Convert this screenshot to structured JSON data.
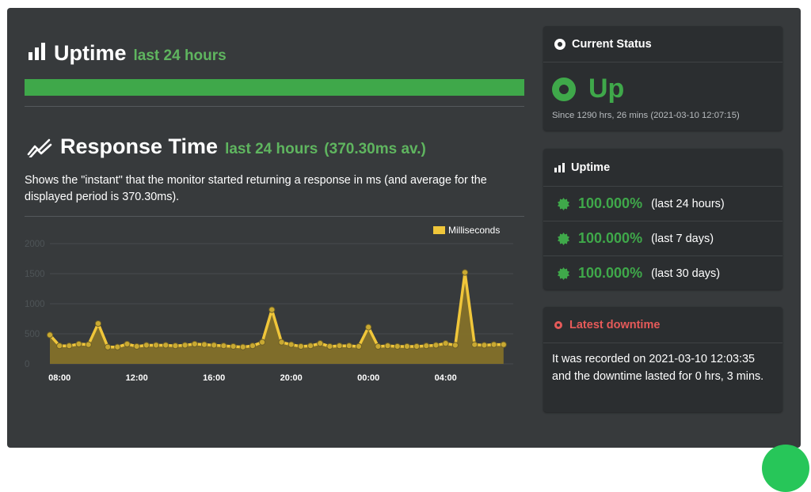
{
  "uptime_section": {
    "title": "Uptime",
    "subtitle": "last 24 hours",
    "bar_percent": 100
  },
  "response_section": {
    "title": "Response Time",
    "subtitle": "last 24 hours",
    "average": "(370.30ms av.)",
    "description": "Shows the \"instant\" that the monitor started returning a response in ms (and average for the displayed period is 370.30ms)."
  },
  "chart_data": {
    "type": "area",
    "legend": {
      "label": "Milliseconds",
      "position": "top-right",
      "color": "#f0c63a"
    },
    "x_tick_labels": [
      "08:00",
      "12:00",
      "16:00",
      "20:00",
      "00:00",
      "04:00"
    ],
    "x_tick_hours": [
      8,
      12,
      16,
      20,
      24,
      28
    ],
    "y_tick_labels": [
      "0",
      "500",
      "1000",
      "1500",
      "2000"
    ],
    "ylim": [
      0,
      2000
    ],
    "xlim_hours": [
      7.5,
      31.5
    ],
    "grid": true,
    "series": [
      {
        "name": "Milliseconds",
        "color": "#f0c63a",
        "x_hours": [
          7.5,
          8,
          8.5,
          9,
          9.5,
          10,
          10.5,
          11,
          11.5,
          12,
          12.5,
          13,
          13.5,
          14,
          14.5,
          15,
          15.5,
          16,
          16.5,
          17,
          17.5,
          18,
          18.5,
          19,
          19.5,
          20,
          20.5,
          21,
          21.5,
          22,
          22.5,
          23,
          23.5,
          24,
          24.5,
          25,
          25.5,
          26,
          26.5,
          27,
          27.5,
          28,
          28.5,
          29,
          29.5,
          30,
          30.5,
          31
        ],
        "values": [
          480,
          300,
          300,
          330,
          320,
          670,
          280,
          280,
          330,
          290,
          310,
          310,
          310,
          300,
          310,
          330,
          320,
          310,
          300,
          290,
          280,
          300,
          360,
          900,
          360,
          320,
          290,
          300,
          340,
          290,
          300,
          300,
          290,
          610,
          290,
          300,
          290,
          290,
          290,
          300,
          310,
          340,
          310,
          1520,
          320,
          310,
          320,
          320
        ]
      }
    ]
  },
  "current_status": {
    "title": "Current Status",
    "state": "Up",
    "since": "Since 1290 hrs, 26 mins (2021-03-10 12:07:15)",
    "color": "#3fa84a"
  },
  "uptime_card": {
    "title": "Uptime",
    "items": [
      {
        "percent": "100.000%",
        "period": "(last 24 hours)"
      },
      {
        "percent": "100.000%",
        "period": "(last 7 days)"
      },
      {
        "percent": "100.000%",
        "period": "(last 30 days)"
      }
    ]
  },
  "latest_downtime": {
    "title": "Latest downtime",
    "body": "It was recorded on 2021-03-10 12:03:35 and the downtime lasted for 0 hrs, 3 mins.",
    "color": "#e65a59"
  }
}
